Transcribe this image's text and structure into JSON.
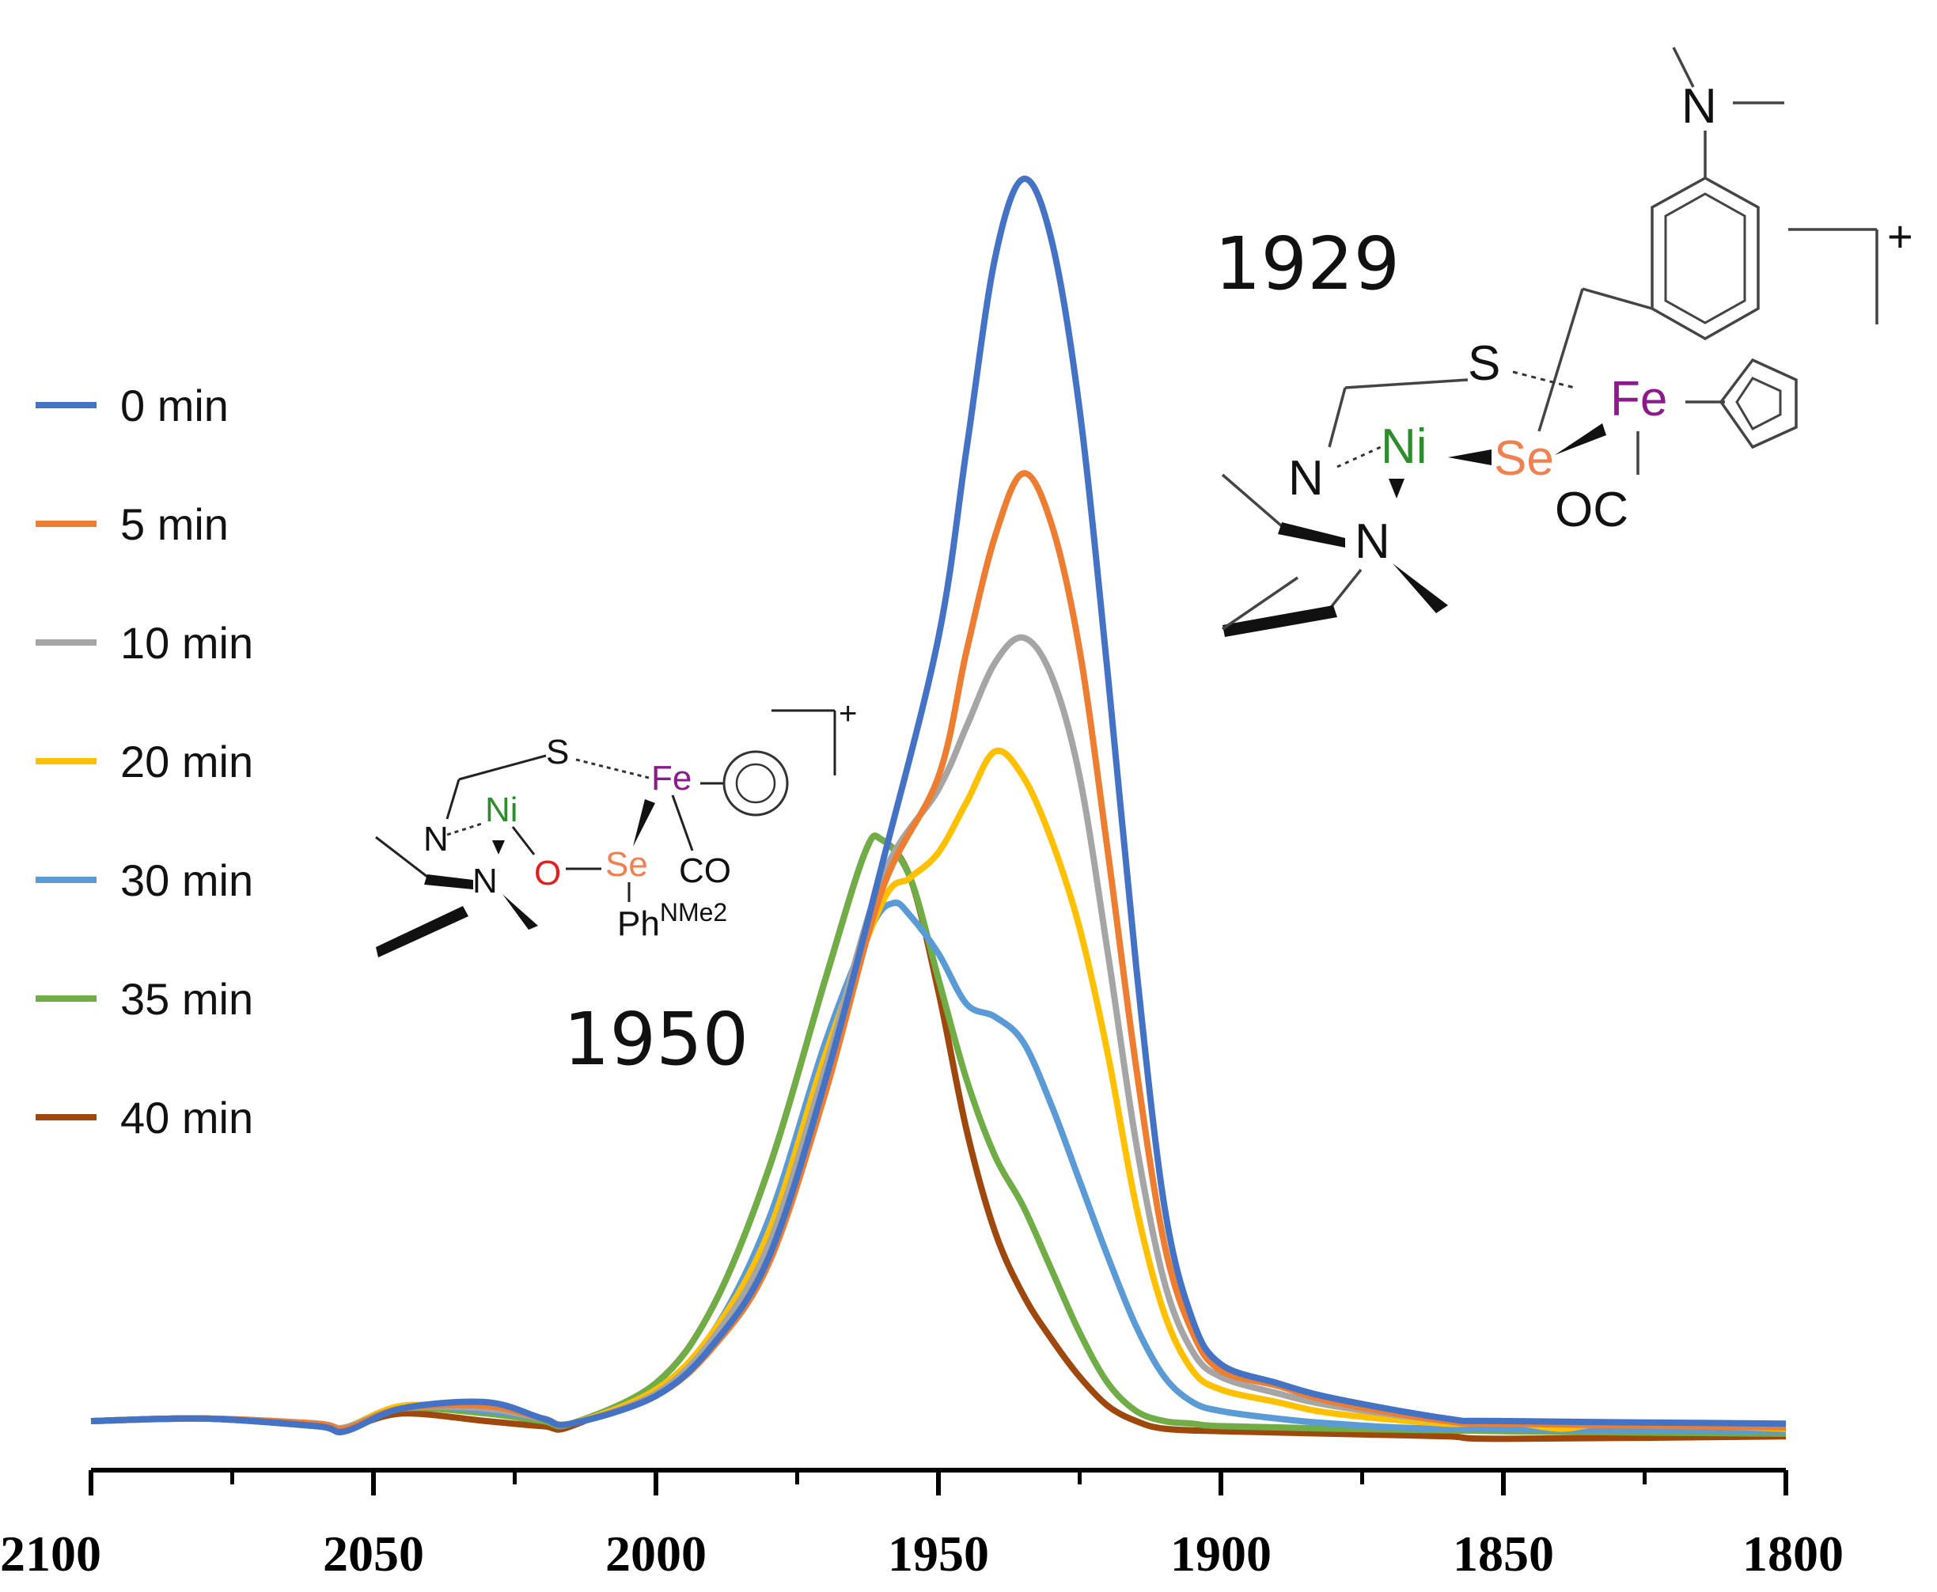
{
  "chart_data": {
    "type": "line",
    "title": "",
    "xlabel": "",
    "ylabel": "",
    "xlim": [
      2100,
      1800
    ],
    "x_reversed": true,
    "grid": false,
    "legend_position": "left",
    "x_tick_labels": [
      "2100",
      "2050",
      "2000",
      "1950",
      "1900",
      "1850",
      "1800"
    ],
    "x_tick_values": [
      2100,
      2050,
      2000,
      1950,
      1900,
      1850,
      1800
    ],
    "ylim": [
      0,
      1.0
    ],
    "series": [
      {
        "name": "0 min",
        "color": "#4472c4",
        "points": [
          [
            2100,
            0.01
          ],
          [
            2080,
            0.012
          ],
          [
            2060,
            0.006
          ],
          [
            2055,
            0.002
          ],
          [
            2045,
            0.02
          ],
          [
            2030,
            0.025
          ],
          [
            2020,
            0.012
          ],
          [
            2015,
            0.008
          ],
          [
            2000,
            0.03
          ],
          [
            1990,
            0.07
          ],
          [
            1980,
            0.14
          ],
          [
            1970,
            0.28
          ],
          [
            1960,
            0.45
          ],
          [
            1950,
            0.63
          ],
          [
            1945,
            0.78
          ],
          [
            1940,
            0.93
          ],
          [
            1935,
            0.993
          ],
          [
            1930,
            0.945
          ],
          [
            1925,
            0.81
          ],
          [
            1920,
            0.6
          ],
          [
            1915,
            0.37
          ],
          [
            1910,
            0.18
          ],
          [
            1905,
            0.09
          ],
          [
            1900,
            0.055
          ],
          [
            1890,
            0.04
          ],
          [
            1880,
            0.028
          ],
          [
            1860,
            0.012
          ],
          [
            1850,
            0.01
          ],
          [
            1800,
            0.008
          ]
        ]
      },
      {
        "name": "5 min",
        "color": "#ed7d31",
        "points": [
          [
            2100,
            0.01
          ],
          [
            2080,
            0.012
          ],
          [
            2060,
            0.008
          ],
          [
            2055,
            0.004
          ],
          [
            2045,
            0.02
          ],
          [
            2030,
            0.022
          ],
          [
            2020,
            0.012
          ],
          [
            2015,
            0.008
          ],
          [
            2000,
            0.03
          ],
          [
            1990,
            0.068
          ],
          [
            1980,
            0.135
          ],
          [
            1970,
            0.27
          ],
          [
            1960,
            0.43
          ],
          [
            1950,
            0.52
          ],
          [
            1945,
            0.62
          ],
          [
            1940,
            0.71
          ],
          [
            1935,
            0.76
          ],
          [
            1930,
            0.72
          ],
          [
            1925,
            0.62
          ],
          [
            1920,
            0.46
          ],
          [
            1915,
            0.29
          ],
          [
            1910,
            0.15
          ],
          [
            1905,
            0.08
          ],
          [
            1900,
            0.05
          ],
          [
            1890,
            0.038
          ],
          [
            1880,
            0.025
          ],
          [
            1860,
            0.01
          ],
          [
            1850,
            0.008
          ],
          [
            1800,
            0.005
          ]
        ]
      },
      {
        "name": "10 min",
        "color": "#a5a5a5",
        "points": [
          [
            2100,
            0.01
          ],
          [
            2080,
            0.012
          ],
          [
            2060,
            0.008
          ],
          [
            2055,
            0.005
          ],
          [
            2045,
            0.02
          ],
          [
            2030,
            0.02
          ],
          [
            2020,
            0.012
          ],
          [
            2015,
            0.008
          ],
          [
            2000,
            0.032
          ],
          [
            1990,
            0.075
          ],
          [
            1980,
            0.15
          ],
          [
            1970,
            0.29
          ],
          [
            1960,
            0.44
          ],
          [
            1950,
            0.51
          ],
          [
            1945,
            0.56
          ],
          [
            1940,
            0.61
          ],
          [
            1935,
            0.63
          ],
          [
            1930,
            0.6
          ],
          [
            1925,
            0.52
          ],
          [
            1920,
            0.38
          ],
          [
            1915,
            0.23
          ],
          [
            1910,
            0.12
          ],
          [
            1905,
            0.065
          ],
          [
            1900,
            0.045
          ],
          [
            1890,
            0.032
          ],
          [
            1880,
            0.022
          ],
          [
            1860,
            0.01
          ],
          [
            1850,
            0.008
          ],
          [
            1800,
            0.006
          ]
        ]
      },
      {
        "name": "20 min",
        "color": "#ffc000",
        "points": [
          [
            2100,
            0.01
          ],
          [
            2080,
            0.012
          ],
          [
            2060,
            0.008
          ],
          [
            2055,
            0.005
          ],
          [
            2045,
            0.022
          ],
          [
            2030,
            0.02
          ],
          [
            2020,
            0.012
          ],
          [
            2015,
            0.008
          ],
          [
            2000,
            0.035
          ],
          [
            1990,
            0.08
          ],
          [
            1980,
            0.16
          ],
          [
            1970,
            0.3
          ],
          [
            1960,
            0.42
          ],
          [
            1955,
            0.44
          ],
          [
            1950,
            0.46
          ],
          [
            1945,
            0.5
          ],
          [
            1940,
            0.54
          ],
          [
            1935,
            0.52
          ],
          [
            1930,
            0.47
          ],
          [
            1925,
            0.4
          ],
          [
            1920,
            0.3
          ],
          [
            1915,
            0.18
          ],
          [
            1910,
            0.095
          ],
          [
            1905,
            0.05
          ],
          [
            1900,
            0.035
          ],
          [
            1890,
            0.025
          ],
          [
            1880,
            0.016
          ],
          [
            1860,
            0.008
          ],
          [
            1850,
            0.01
          ],
          [
            1840,
            0.004
          ],
          [
            1830,
            0.008
          ],
          [
            1800,
            0.004
          ]
        ]
      },
      {
        "name": "30 min",
        "color": "#5b9bd5",
        "points": [
          [
            2100,
            0.01
          ],
          [
            2080,
            0.012
          ],
          [
            2060,
            0.006
          ],
          [
            2055,
            0.002
          ],
          [
            2045,
            0.022
          ],
          [
            2030,
            0.018
          ],
          [
            2020,
            0.012
          ],
          [
            2015,
            0.008
          ],
          [
            2000,
            0.035
          ],
          [
            1990,
            0.08
          ],
          [
            1980,
            0.17
          ],
          [
            1970,
            0.31
          ],
          [
            1962,
            0.4
          ],
          [
            1958,
            0.42
          ],
          [
            1955,
            0.41
          ],
          [
            1950,
            0.38
          ],
          [
            1945,
            0.34
          ],
          [
            1940,
            0.33
          ],
          [
            1935,
            0.31
          ],
          [
            1930,
            0.26
          ],
          [
            1925,
            0.2
          ],
          [
            1920,
            0.14
          ],
          [
            1915,
            0.085
          ],
          [
            1910,
            0.045
          ],
          [
            1905,
            0.025
          ],
          [
            1900,
            0.018
          ],
          [
            1890,
            0.012
          ],
          [
            1880,
            0.008
          ],
          [
            1860,
            0.004
          ],
          [
            1800,
            0.002
          ]
        ]
      },
      {
        "name": "35 min",
        "color": "#70ad47",
        "points": [
          [
            2100,
            0.01
          ],
          [
            2080,
            0.012
          ],
          [
            2060,
            0.006
          ],
          [
            2055,
            0.004
          ],
          [
            2045,
            0.02
          ],
          [
            2030,
            0.016
          ],
          [
            2020,
            0.01
          ],
          [
            2015,
            0.008
          ],
          [
            2000,
            0.04
          ],
          [
            1990,
            0.1
          ],
          [
            1980,
            0.21
          ],
          [
            1970,
            0.36
          ],
          [
            1963,
            0.46
          ],
          [
            1960,
            0.47
          ],
          [
            1955,
            0.44
          ],
          [
            1950,
            0.36
          ],
          [
            1945,
            0.28
          ],
          [
            1940,
            0.22
          ],
          [
            1935,
            0.18
          ],
          [
            1930,
            0.13
          ],
          [
            1925,
            0.08
          ],
          [
            1920,
            0.04
          ],
          [
            1915,
            0.018
          ],
          [
            1910,
            0.01
          ],
          [
            1905,
            0.008
          ],
          [
            1900,
            0.006
          ],
          [
            1880,
            0.004
          ],
          [
            1850,
            0.002
          ],
          [
            1800,
            0.0
          ]
        ]
      },
      {
        "name": "40 min",
        "color": "#9e480e",
        "points": [
          [
            2100,
            0.01
          ],
          [
            2080,
            0.012
          ],
          [
            2060,
            0.006
          ],
          [
            2055,
            0.004
          ],
          [
            2045,
            0.016
          ],
          [
            2030,
            0.01
          ],
          [
            2020,
            0.006
          ],
          [
            2015,
            0.006
          ],
          [
            2000,
            0.04
          ],
          [
            1990,
            0.1
          ],
          [
            1980,
            0.21
          ],
          [
            1970,
            0.36
          ],
          [
            1963,
            0.46
          ],
          [
            1960,
            0.47
          ],
          [
            1955,
            0.44
          ],
          [
            1950,
            0.35
          ],
          [
            1945,
            0.24
          ],
          [
            1940,
            0.16
          ],
          [
            1935,
            0.11
          ],
          [
            1930,
            0.075
          ],
          [
            1925,
            0.045
          ],
          [
            1920,
            0.022
          ],
          [
            1915,
            0.01
          ],
          [
            1910,
            0.004
          ],
          [
            1900,
            0.002
          ],
          [
            1880,
            0.0
          ],
          [
            1860,
            -0.002
          ],
          [
            1850,
            -0.004
          ],
          [
            1800,
            -0.002
          ]
        ]
      }
    ],
    "annotations": [
      {
        "text": "1929",
        "near_x": 1929
      },
      {
        "text": "1950",
        "near_x": 1950
      }
    ]
  },
  "structures": {
    "right": {
      "atoms": {
        "n_top": "N",
        "s": "S",
        "ni": "Ni",
        "se": "Se",
        "fe": "Fe",
        "oc": "OC",
        "n1": "N",
        "n2": "N"
      },
      "charge": "+"
    },
    "left": {
      "atoms": {
        "s": "S",
        "fe": "Fe",
        "n1": "N",
        "ni": "Ni",
        "n2": "N",
        "o": "O",
        "se": "Se",
        "co": "CO",
        "ph": "Ph",
        "ph_sup": "NMe2"
      },
      "charge": "+"
    }
  },
  "colors": {
    "ni": "#2e8b2e",
    "se": "#f08050",
    "fe": "#8b1a8b",
    "o": "#e02020",
    "axis": "#000000"
  }
}
